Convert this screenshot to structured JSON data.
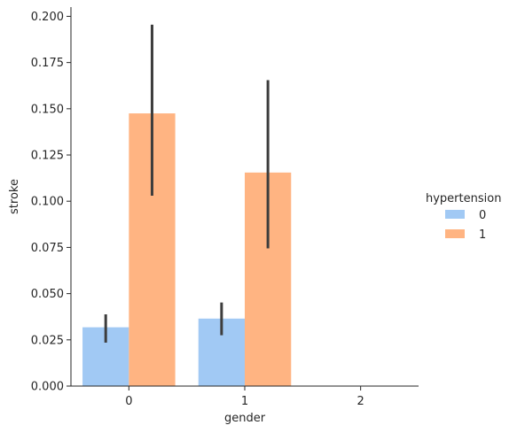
{
  "chart_data": {
    "type": "bar",
    "categories": [
      "0",
      "1",
      "2"
    ],
    "xlabel": "gender",
    "ylabel": "stroke",
    "ylim": [
      0,
      0.205
    ],
    "yticks": [
      "0.000",
      "0.025",
      "0.050",
      "0.075",
      "0.100",
      "0.125",
      "0.150",
      "0.175",
      "0.200"
    ],
    "grid": false,
    "legend": {
      "title": "hypertension",
      "position": "right"
    },
    "series": [
      {
        "name": "0",
        "color": "#a1c9f4",
        "values": [
          0.0318,
          0.0365,
          null
        ],
        "ci_low": [
          0.0235,
          0.0275,
          null
        ],
        "ci_high": [
          0.0388,
          0.0452,
          null
        ]
      },
      {
        "name": "1",
        "color": "#ffb482",
        "values": [
          0.1475,
          0.1155,
          null
        ],
        "ci_low": [
          0.103,
          0.0745,
          null
        ],
        "ci_high": [
          0.1955,
          0.1655,
          null
        ]
      }
    ]
  }
}
